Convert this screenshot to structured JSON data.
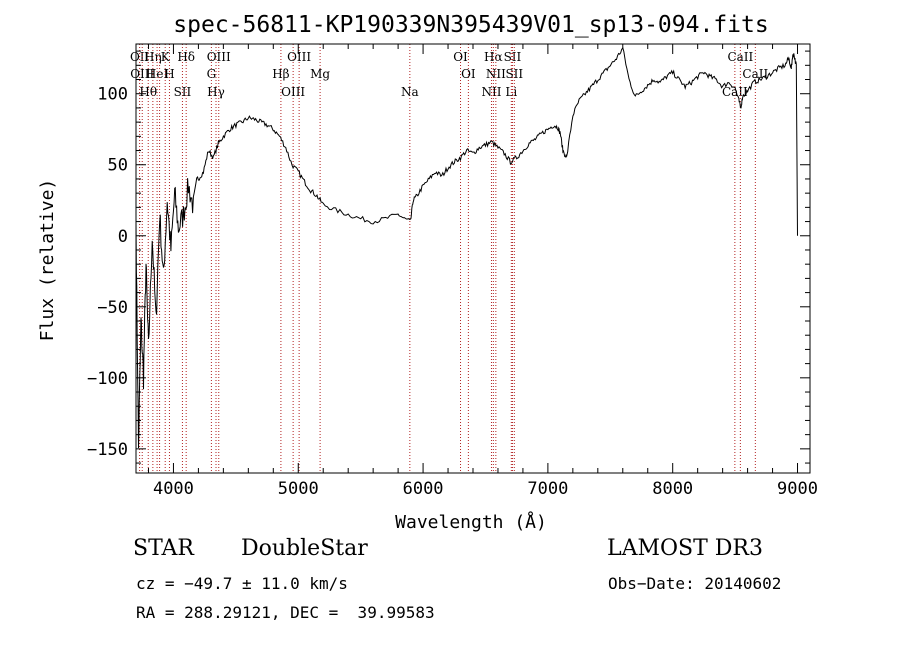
{
  "chart_data": {
    "type": "line",
    "title": "spec-56811-KP190339N395439V01_sp13-094.fits",
    "xlabel": "Wavelength (Å)",
    "ylabel": "Flux (relative)",
    "xlim": [
      3700,
      9100
    ],
    "ylim": [
      -167,
      135
    ],
    "xticks": [
      4000,
      5000,
      6000,
      7000,
      8000,
      9000
    ],
    "yticks": [
      -150,
      -100,
      -50,
      0,
      50,
      100
    ],
    "grid": false,
    "series": [
      {
        "x": [
          3700,
          3720,
          3740,
          3760,
          3780,
          3800,
          3830,
          3860,
          3890,
          3920,
          3950,
          3980,
          4010,
          4040,
          4080,
          4120,
          4160,
          4200,
          4240,
          4280,
          4320,
          4360,
          4400,
          4450,
          4500,
          4550,
          4600,
          4650,
          4700,
          4750,
          4800,
          4850,
          4900,
          4950,
          5000,
          5050,
          5100,
          5150,
          5200,
          5300,
          5400,
          5500,
          5600,
          5700,
          5800,
          5850,
          5900,
          5920,
          5950,
          6000,
          6050,
          6100,
          6150,
          6200,
          6250,
          6300,
          6350,
          6400,
          6450,
          6500,
          6550,
          6600,
          6650,
          6700,
          6750,
          6800,
          6850,
          6900,
          6950,
          7000,
          7050,
          7080,
          7100,
          7120,
          7150,
          7200,
          7250,
          7300,
          7350,
          7400,
          7450,
          7500,
          7550,
          7600,
          7650,
          7700,
          7750,
          7800,
          7850,
          7900,
          7950,
          8000,
          8050,
          8100,
          8150,
          8200,
          8250,
          8300,
          8350,
          8400,
          8450,
          8500,
          8530,
          8545,
          8560,
          8600,
          8650,
          8700,
          8750,
          8800,
          8850,
          8900,
          8930,
          8950,
          8960,
          8970,
          8990,
          9000
        ],
        "values": [
          10,
          -150,
          -60,
          -100,
          -20,
          -80,
          0,
          -60,
          15,
          -30,
          25,
          -10,
          30,
          5,
          15,
          35,
          20,
          40,
          45,
          60,
          55,
          65,
          70,
          75,
          78,
          80,
          83,
          82,
          80,
          78,
          75,
          70,
          62,
          50,
          45,
          38,
          32,
          28,
          22,
          18,
          15,
          12,
          10,
          12,
          15,
          12,
          10,
          25,
          28,
          35,
          40,
          45,
          42,
          48,
          52,
          55,
          60,
          58,
          62,
          64,
          66,
          62,
          58,
          52,
          55,
          60,
          65,
          68,
          72,
          75,
          78,
          76,
          72,
          60,
          55,
          85,
          95,
          100,
          105,
          110,
          115,
          120,
          125,
          132,
          110,
          98,
          102,
          106,
          110,
          108,
          112,
          115,
          110,
          105,
          108,
          112,
          115,
          112,
          110,
          105,
          108,
          104,
          95,
          90,
          98,
          102,
          108,
          110,
          112,
          115,
          118,
          120,
          125,
          118,
          126,
          128,
          120,
          0
        ]
      }
    ],
    "lines": [
      {
        "x": 3729,
        "labels": [
          "OII"
        ]
      },
      {
        "x": 3750,
        "labels": [
          "OIII"
        ]
      },
      {
        "x": 3798,
        "labels": [
          "Hθ"
        ]
      },
      {
        "x": 3835,
        "labels": [
          "Hη"
        ]
      },
      {
        "x": 3869,
        "labels": [
          "HeI"
        ]
      },
      {
        "x": 3889,
        "labels": []
      },
      {
        "x": 3934,
        "labels": [
          "K"
        ]
      },
      {
        "x": 3968,
        "labels": [
          "H"
        ]
      },
      {
        "x": 4072,
        "labels": [
          "SII"
        ]
      },
      {
        "x": 4102,
        "labels": [
          "Hδ"
        ]
      },
      {
        "x": 4304,
        "labels": [
          "G"
        ]
      },
      {
        "x": 4341,
        "labels": [
          "Hγ"
        ]
      },
      {
        "x": 4363,
        "labels": [
          "OIII"
        ]
      },
      {
        "x": 4861,
        "labels": [
          "Hβ"
        ]
      },
      {
        "x": 4959,
        "labels": [
          "OIII"
        ]
      },
      {
        "x": 5007,
        "labels": [
          "OIII"
        ]
      },
      {
        "x": 5175,
        "labels": [
          "Mg"
        ]
      },
      {
        "x": 5894,
        "labels": [
          "Na"
        ]
      },
      {
        "x": 6300,
        "labels": [
          "OI"
        ]
      },
      {
        "x": 6363,
        "labels": [
          "OI"
        ]
      },
      {
        "x": 6548,
        "labels": [
          "NII"
        ]
      },
      {
        "x": 6563,
        "labels": [
          "Hα"
        ]
      },
      {
        "x": 6583,
        "labels": [
          "NII"
        ]
      },
      {
        "x": 6707,
        "labels": [
          "Li"
        ]
      },
      {
        "x": 6716,
        "labels": [
          "SII"
        ]
      },
      {
        "x": 6731,
        "labels": [
          "SII"
        ]
      },
      {
        "x": 8498,
        "labels": [
          "CaII"
        ]
      },
      {
        "x": 8542,
        "labels": [
          "CaII"
        ]
      },
      {
        "x": 8662,
        "labels": [
          "CaII"
        ]
      }
    ]
  },
  "info": {
    "class": "STAR",
    "subclass": "DoubleStar",
    "survey": "LAMOST DR3",
    "cz": "cz = −49.7 ± 11.0 km/s",
    "obs_date": "Obs−Date: 20140602",
    "radec": "RA = 288.29121, DEC =  39.99583"
  }
}
